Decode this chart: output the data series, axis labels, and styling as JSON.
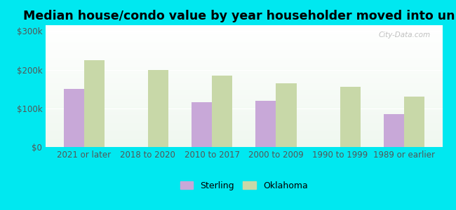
{
  "title": "Median house/condo value by year householder moved into unit",
  "categories": [
    "2021 or later",
    "2018 to 2020",
    "2010 to 2017",
    "2000 to 2009",
    "1990 to 1999",
    "1989 or earlier"
  ],
  "sterling_values": [
    150000,
    null,
    115000,
    120000,
    null,
    85000
  ],
  "oklahoma_values": [
    225000,
    200000,
    185000,
    165000,
    155000,
    130000
  ],
  "sterling_color": "#c8a8d8",
  "oklahoma_color": "#c8d8a8",
  "background_color": "#00e8f0",
  "yticks": [
    0,
    100000,
    200000,
    300000
  ],
  "ylabels": [
    "$0",
    "$100k",
    "$200k",
    "$300k"
  ],
  "ylim": [
    0,
    315000
  ],
  "legend_labels": [
    "Sterling",
    "Oklahoma"
  ],
  "bar_width": 0.32,
  "title_fontsize": 12.5,
  "tick_fontsize": 8.5,
  "legend_fontsize": 9
}
